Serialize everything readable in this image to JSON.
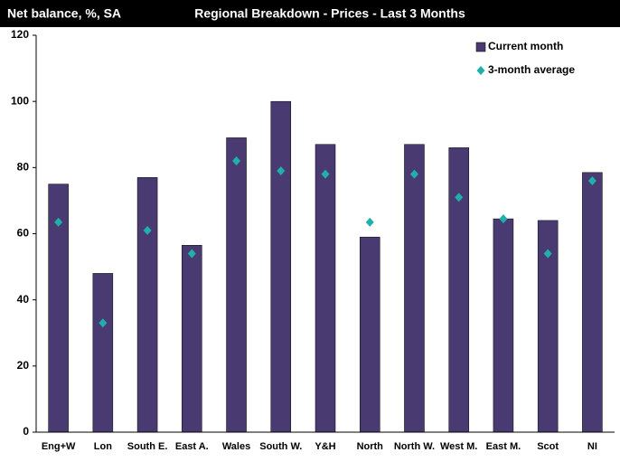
{
  "chart_data": {
    "type": "bar",
    "title": "Regional Breakdown - Prices - Last 3 Months",
    "y_label": "Net balance, %, SA",
    "categories": [
      "Eng+W",
      "Lon",
      "South E.",
      "East A.",
      "Wales",
      "South W.",
      "Y&H",
      "North",
      "North W.",
      "West M.",
      "East M.",
      "Scot",
      "NI"
    ],
    "series": [
      {
        "name": "Current month",
        "type": "bar",
        "color": "#4a3a72",
        "values": [
          75,
          48,
          77,
          56.5,
          89,
          100,
          87,
          59,
          87,
          86,
          64.5,
          64,
          78.5
        ]
      },
      {
        "name": "3-month average",
        "type": "scatter",
        "color": "#1fb0aa",
        "values": [
          63.5,
          33,
          61,
          54,
          82,
          79,
          78,
          63.5,
          78,
          71,
          64.5,
          54,
          76
        ]
      }
    ],
    "ylim": [
      0,
      120
    ],
    "yticks": [
      0,
      20,
      40,
      60,
      80,
      100,
      120
    ],
    "grid": false,
    "legend": "top-right"
  }
}
